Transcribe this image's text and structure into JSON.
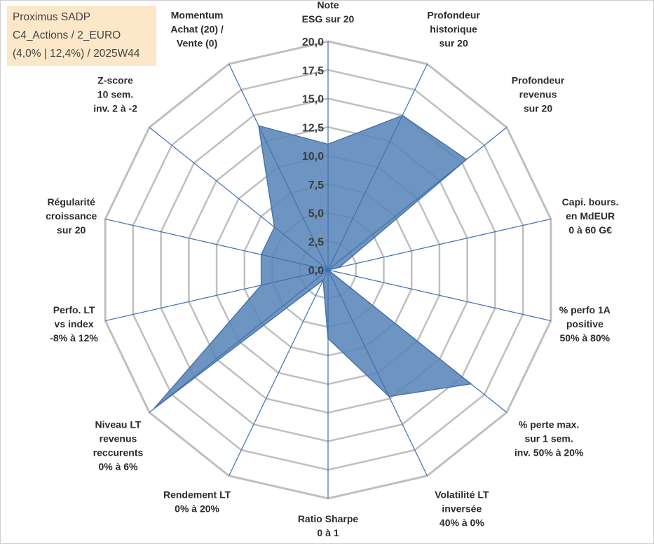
{
  "legend": {
    "line1": "Proximus SADP",
    "line2": "C4_Actions / 2_EURO",
    "line3": "(4,0% | 12,4%) / 2025W44"
  },
  "colors": {
    "fill": "#5a86b8",
    "stroke": "#4a74a8",
    "spoke": "#3f6fb5",
    "grid": "#bfbfbf",
    "legend_bg": "#fce8c8"
  },
  "chart_data": {
    "type": "radar",
    "title": "",
    "rmin": 0,
    "rmax": 20,
    "tick_step": 2.5,
    "tick_labels": [
      "0,0",
      "2,5",
      "5,0",
      "7,5",
      "10,0",
      "12,5",
      "15,0",
      "17,5",
      "20,0"
    ],
    "axes": [
      {
        "label": [
          "Note",
          "ESG sur 20"
        ],
        "value": 11
      },
      {
        "label": [
          "Profondeur",
          "historique",
          "sur 20"
        ],
        "value": 15
      },
      {
        "label": [
          "Profondeur",
          "revenus",
          "sur 20"
        ],
        "value": 15.5
      },
      {
        "label": [
          "Capi. bours.",
          "en MdEUR",
          "0 à 60 G€"
        ],
        "value": 1
      },
      {
        "label": [
          "% perfo 1A",
          "positive",
          "50% à 80%"
        ],
        "value": 0
      },
      {
        "label": [
          "% perte max.",
          "sur 1 sem.",
          "inv. 50% à 20%"
        ],
        "value": 16
      },
      {
        "label": [
          "Volatilité LT",
          "inversée",
          "40% à 0%"
        ],
        "value": 12.3
      },
      {
        "label": [
          "Ratio Sharpe",
          "0 à 1"
        ],
        "value": 6
      },
      {
        "label": [
          "Rendement LT",
          "0% à 20%"
        ],
        "value": 1
      },
      {
        "label": [
          "Niveau LT",
          "revenus",
          "reccurents",
          "0% à 6%"
        ],
        "value": 19.5
      },
      {
        "label": [
          "Perfo. LT",
          "vs index",
          "-8% à 12%"
        ],
        "value": 6
      },
      {
        "label": [
          "Régularité",
          "croissance",
          "sur 20"
        ],
        "value": 6
      },
      {
        "label": [
          "Z-score",
          "10 sem.",
          "inv. 2 à -2"
        ],
        "value": 6
      },
      {
        "label": [
          "Momentum",
          "Achat (20) /",
          "Vente (0)"
        ],
        "value": 14
      }
    ]
  }
}
